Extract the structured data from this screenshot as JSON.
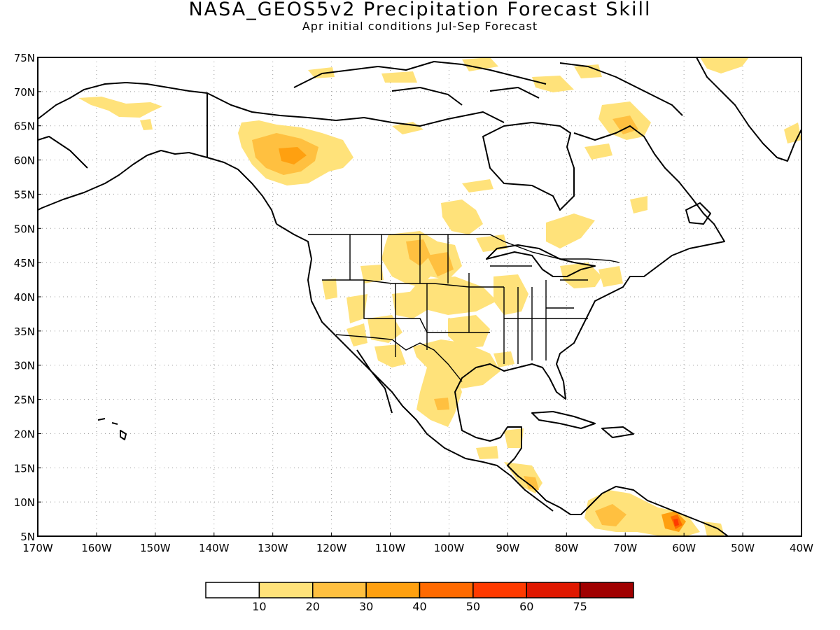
{
  "title": "NASA_GEOS5v2 Precipitation Forecast Skill",
  "subtitle": "Apr initial conditions  Jul-Sep Forecast",
  "colors": {
    "c0": "#ffffff",
    "c1": "#ffe27a",
    "c2": "#ffc040",
    "c3": "#ffa010",
    "c4": "#ff6a00",
    "c5": "#ff3a00",
    "c6": "#e01800",
    "c7": "#a00000",
    "land": "#000000",
    "grid": "#9a9a9a"
  },
  "map": {
    "lon_range": [
      -170,
      -40
    ],
    "lat_range": [
      5,
      75
    ],
    "y_ticks": [
      "75N",
      "70N",
      "65N",
      "60N",
      "55N",
      "50N",
      "45N",
      "40N",
      "35N",
      "30N",
      "25N",
      "20N",
      "15N",
      "10N",
      "5N"
    ],
    "x_ticks": [
      "170W",
      "160W",
      "150W",
      "140W",
      "130W",
      "120W",
      "110W",
      "100W",
      "90W",
      "80W",
      "70W",
      "60W",
      "50W",
      "40W"
    ]
  },
  "colorbar": {
    "labels": [
      "10",
      "20",
      "30",
      "40",
      "50",
      "60",
      "75"
    ]
  }
}
